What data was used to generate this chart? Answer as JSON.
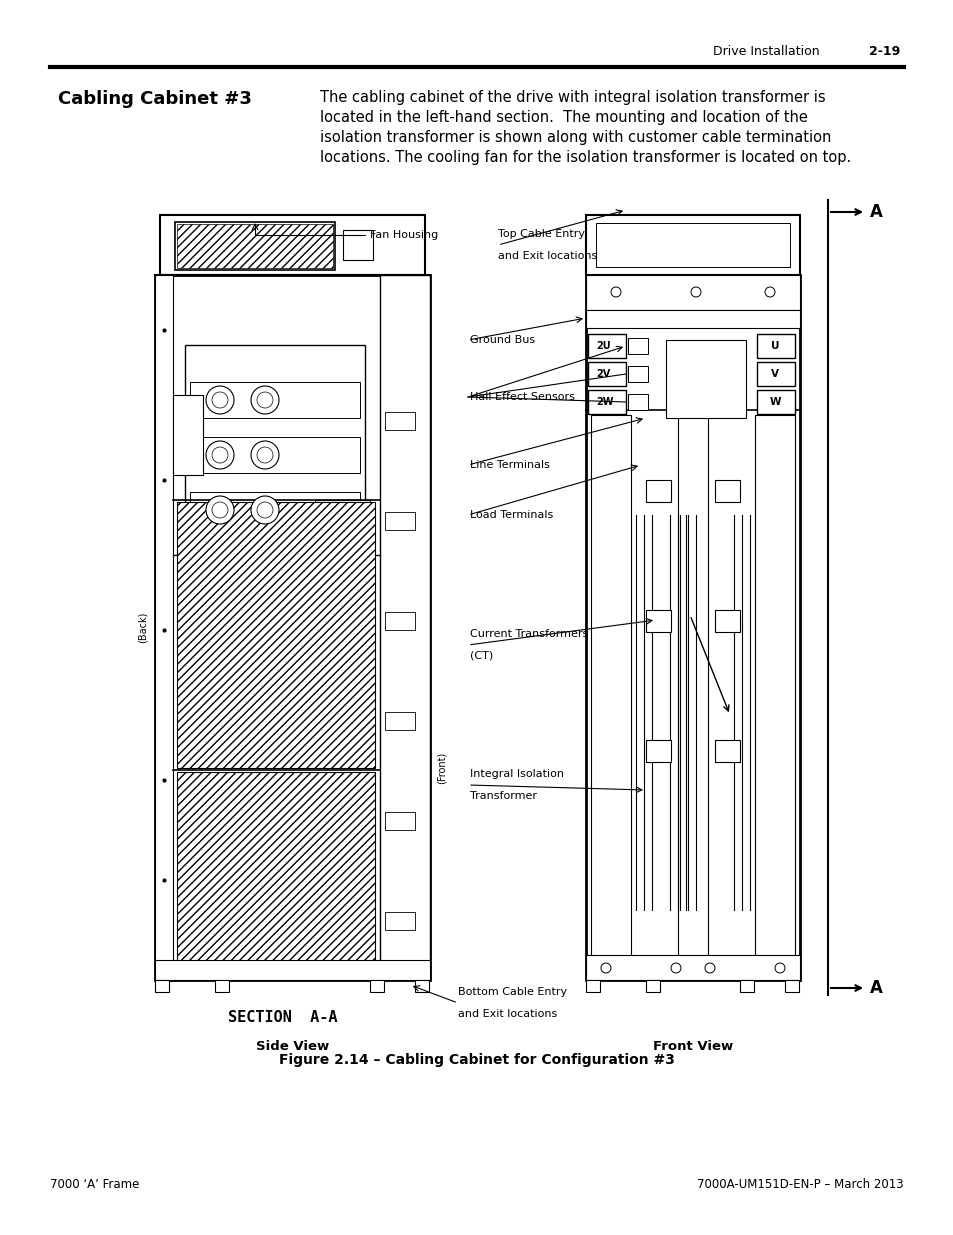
{
  "bg_color": "#ffffff",
  "header_text": "Drive Installation",
  "header_page": "2-19",
  "footer_left": "7000 ‘A’ Frame",
  "footer_right": "7000A-UM151D-EN-P – March 2013",
  "section_title": "Cabling Cabinet #3",
  "body_text_lines": [
    "The cabling cabinet of the drive with integral isolation transformer is",
    "located in the left-hand section.  The mounting and location of the",
    "isolation transformer is shown along with customer cable termination",
    "locations. The cooling fan for the isolation transformer is located on top."
  ],
  "figure_caption": "Figure 2.14 – Cabling Cabinet for Configuration #3",
  "labels": {
    "fan_housing": "Fan Housing",
    "top_cable_line1": "Top Cable Entry",
    "top_cable_line2": "and Exit locations",
    "ground_bus": "Ground Bus",
    "hall_effect": "Hall Effect Sensors",
    "line_terminals": "Line Terminals",
    "load_terminals": "Load Terminals",
    "current_transformers_line1": "Current Transformers",
    "current_transformers_line2": "(CT)",
    "integral_isolation_line1": "Integral Isolation",
    "integral_isolation_line2": "Transformer",
    "bottom_cable_line1": "Bottom Cable Entry",
    "bottom_cable_line2": "and Exit locations",
    "section_label": "SECTION  A-A",
    "side_view": "Side View",
    "front_view": "Front View",
    "back_label": "(Back)",
    "front_label": "(Front)",
    "A_label": "A"
  },
  "line_color": "#000000",
  "title_fontsize": 13,
  "body_fontsize": 10.5,
  "label_fontsize": 8.0,
  "caption_fontsize": 10,
  "header_fontsize": 9,
  "footer_fontsize": 8.5
}
